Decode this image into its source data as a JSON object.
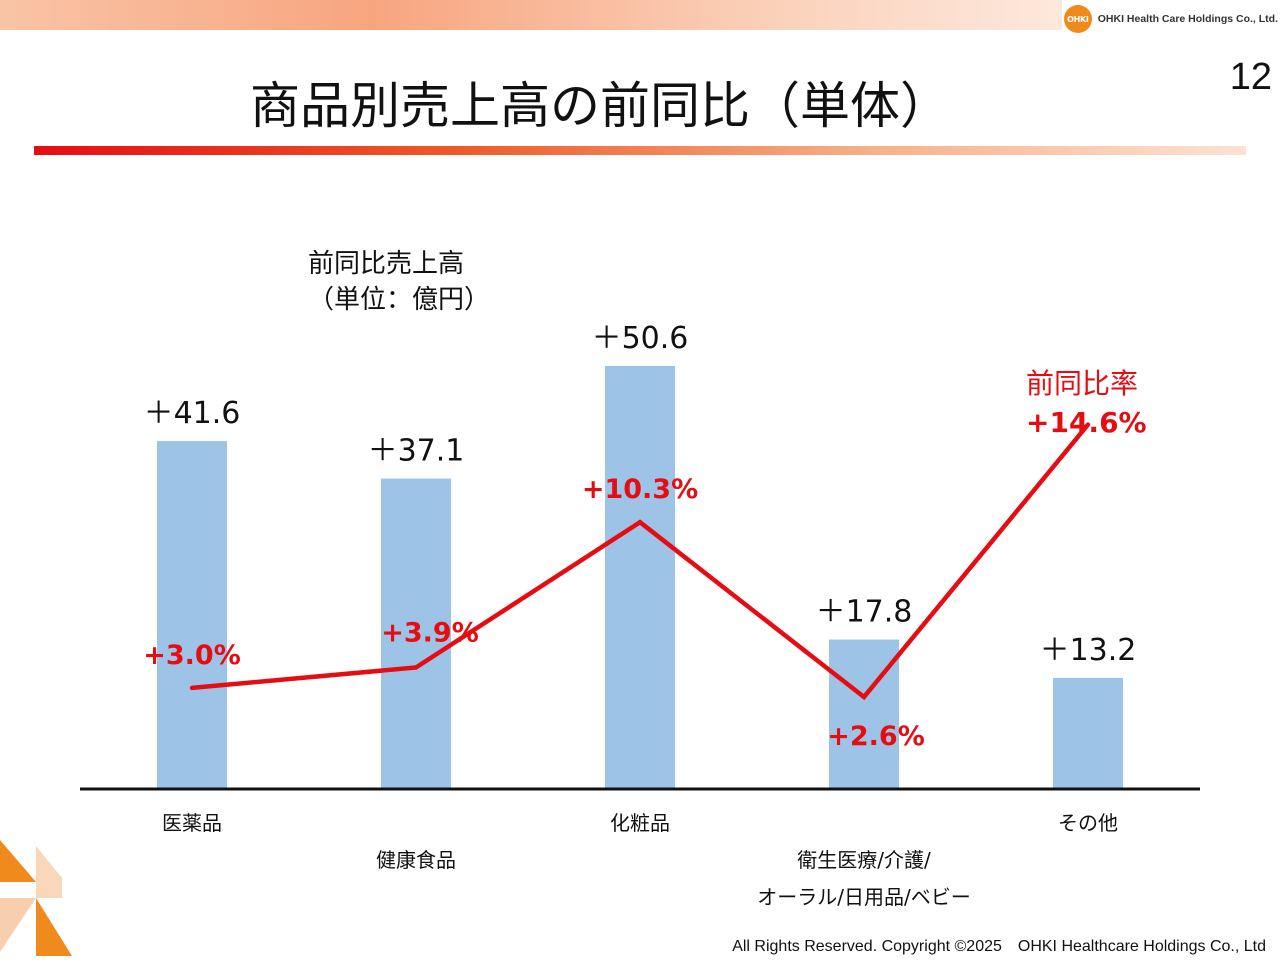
{
  "header": {
    "company": "OHKI Health Care Holdings Co., Ltd.",
    "logo_text": "OHKI",
    "page_number": "12"
  },
  "slide": {
    "title": "商品別売上高の前同比（単体）",
    "unit_label_line1": "前同比売上高",
    "unit_label_line2": "（単位：億円）"
  },
  "rate_legend": {
    "title": "前同比率",
    "value": "+14.6%"
  },
  "chart_data": {
    "type": "bar",
    "categories": [
      [
        "医薬品"
      ],
      [
        "健康食品"
      ],
      [
        "化粧品"
      ],
      [
        "衛生医療/介護/",
        "オーラル/日用品/ベビー"
      ],
      [
        "その他"
      ]
    ],
    "series": [
      {
        "type": "bar",
        "values": [
          41.6,
          37.1,
          50.6,
          17.8,
          13.2
        ],
        "labels": [
          "＋41.6",
          "＋37.1",
          "＋50.6",
          "＋17.8",
          "＋13.2"
        ],
        "color": "#9dc3e6"
      },
      {
        "type": "line",
        "values": [
          3.0,
          3.9,
          10.3,
          2.6,
          14.6
        ],
        "labels": [
          "+3.0%",
          "+3.9%",
          "+10.3%",
          "+2.6%",
          ""
        ],
        "color": "#e60d12"
      }
    ],
    "ylim_bars": [
      0,
      60
    ],
    "ylim_rate": [
      0,
      20
    ]
  },
  "footer": {
    "copyright": "All Rights Reserved. Copyright ©2025　OHKI Healthcare Holdings Co., Ltd"
  },
  "colors": {
    "accent_red": "#e60d12",
    "bar_blue": "#9dc3e6",
    "orange": "#f08a1c"
  }
}
